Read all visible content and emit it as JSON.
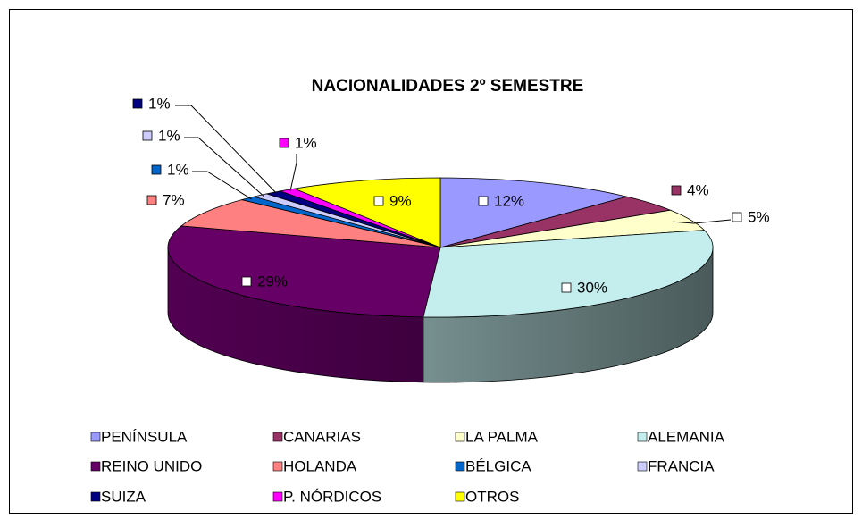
{
  "chart_data": {
    "type": "pie",
    "three_d": true,
    "title": "NACIONALIDADES 2º SEMESTRE",
    "categories": [
      "PENÍNSULA",
      "CANARIAS",
      "LA PALMA",
      "ALEMANIA",
      "REINO UNIDO",
      "HOLANDA",
      "BÉLGICA",
      "FRANCIA",
      "SUIZA",
      "P. NÓRDICOS",
      "OTROS"
    ],
    "values": [
      12,
      4,
      5,
      30,
      29,
      7,
      1,
      1,
      1,
      1,
      9
    ],
    "value_labels": [
      "12%",
      "4%",
      "5%",
      "30%",
      "29%",
      "7%",
      "1%",
      "1%",
      "1%",
      "1%",
      "9%"
    ],
    "colors": [
      "#9999ff",
      "#993366",
      "#ffffcc",
      "#c4eeee",
      "#660066",
      "#ff8080",
      "#0066cc",
      "#ccccff",
      "#000080",
      "#ff00ff",
      "#ffff00"
    ],
    "legend": "bottom"
  }
}
